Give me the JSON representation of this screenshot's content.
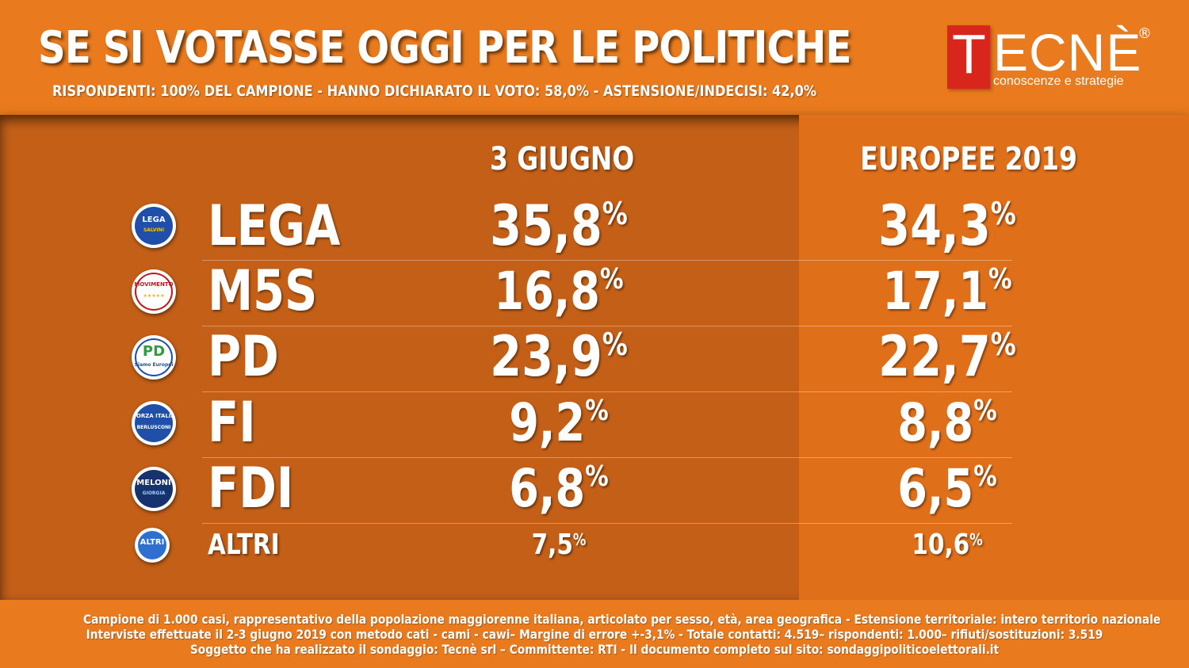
{
  "header": {
    "title": "SE SI VOTASSE OGGI PER LE POLITICHE",
    "subtitle": "RISPONDENTI: 100% DEL CAMPIONE - HANNO DICHIARATO IL VOTO: 58,0%  - ASTENSIONE/INDECISI: 42,0%"
  },
  "logo": {
    "first_letter": "T",
    "rest": "ECNÈ",
    "registered": "®",
    "tagline": "conoscenze e strategie"
  },
  "colors": {
    "background": "#e8791f",
    "panel": "#c35f17",
    "highlight_column": "#e06f1a",
    "logo_red": "#d9261c",
    "text": "#ffffff"
  },
  "chart_data": {
    "type": "table",
    "title": "SE SI VOTASSE OGGI PER LE POLITICHE",
    "columns": [
      "3 GIUGNO",
      "EUROPEE 2019"
    ],
    "rows": [
      {
        "party": "LEGA",
        "icon": "lega-logo-icon",
        "icon_text": "LEGA",
        "icon_sub": "SALVINI",
        "values": [
          "35,8%",
          "34,3%"
        ],
        "numeric": [
          35.8,
          34.3
        ]
      },
      {
        "party": "M5S",
        "icon": "m5s-logo-icon",
        "icon_text": "MOVIMENTO",
        "icon_sub": "★★★★★",
        "values": [
          "16,8%",
          "17,1%"
        ],
        "numeric": [
          16.8,
          17.1
        ]
      },
      {
        "party": "PD",
        "icon": "pd-logo-icon",
        "icon_text": "PD",
        "icon_sub": "Siamo Europei",
        "values": [
          "23,9%",
          "22,7%"
        ],
        "numeric": [
          23.9,
          22.7
        ]
      },
      {
        "party": "FI",
        "icon": "fi-logo-icon",
        "icon_text": "FORZA ITALIA",
        "icon_sub": "BERLUSCONI",
        "values": [
          "9,2%",
          "8,8%"
        ],
        "numeric": [
          9.2,
          8.8
        ]
      },
      {
        "party": "FDI",
        "icon": "fdi-logo-icon",
        "icon_text": "MELONI",
        "icon_sub": "GIORGIA",
        "values": [
          "6,8%",
          "6,5%"
        ],
        "numeric": [
          6.8,
          6.5
        ]
      },
      {
        "party": "ALTRI",
        "icon": "altri-logo-icon",
        "icon_text": "ALTRI",
        "icon_sub": "",
        "values": [
          "7,5%",
          "10,6%"
        ],
        "numeric": [
          7.5,
          10.6
        ]
      }
    ]
  },
  "footer": {
    "line1": "Campione di 1.000 casi, rappresentativo della popolazione maggiorenne italiana, articolato per sesso, età, area geografica - Estensione territoriale: intero territorio nazionale",
    "line2": "Interviste effettuate il 2-3 giugno 2019 con metodo cati - cami - cawi– Margine di errore +-3,1%  - Totale contatti: 4.519– rispondenti:  1.000– rifiuti/sostituzioni: 3.519",
    "line3": "Soggetto che ha realizzato il sondaggio: Tecnè srl – Committente: RTI - Il documento completo sul sito: sondaggipoliticoelettorali.it"
  }
}
